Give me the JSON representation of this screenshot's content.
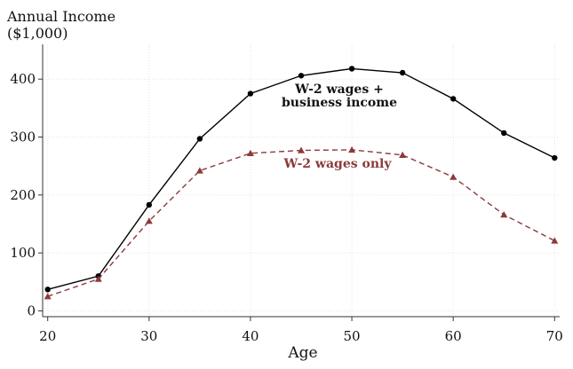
{
  "chart_data": {
    "type": "line",
    "ylabel_line1": "Annual Income",
    "ylabel_line2": "($1,000)",
    "xlabel": "Age",
    "x": [
      20,
      25,
      30,
      35,
      40,
      45,
      50,
      55,
      60,
      65,
      70
    ],
    "xticks": [
      "20",
      "30",
      "40",
      "50",
      "60",
      "70"
    ],
    "yticks": [
      "0",
      "100",
      "200",
      "300",
      "400"
    ],
    "xlim": [
      19.5,
      70.5
    ],
    "ylim": [
      -10,
      460
    ],
    "grid": true,
    "series": [
      {
        "annotation_line1": "W-2 wages +",
        "annotation_line2": "business income",
        "values": [
          37,
          60,
          183,
          297,
          375,
          406,
          418,
          411,
          366,
          307,
          264
        ],
        "color": "#000000",
        "marker": "circle",
        "dash": "solid"
      },
      {
        "annotation_line1": "W-2 wages only",
        "values": [
          25,
          55,
          155,
          242,
          272,
          277,
          278,
          269,
          231,
          166,
          121
        ],
        "color": "#8b3a3a",
        "marker": "triangle",
        "dash": "dashed"
      }
    ]
  }
}
